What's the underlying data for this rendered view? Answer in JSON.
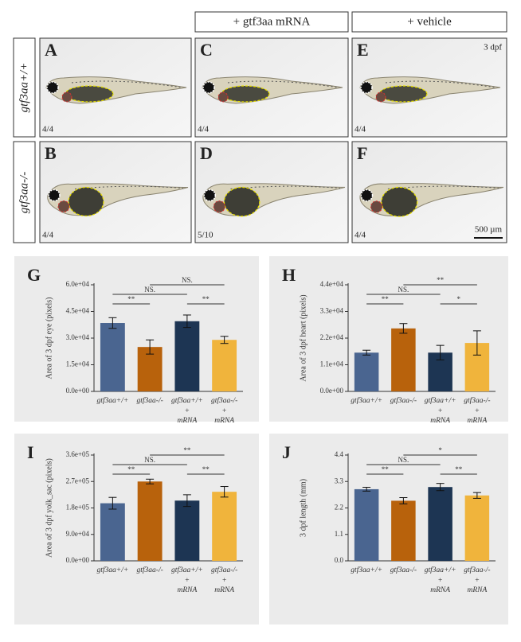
{
  "column_headers": [
    "+ gtf3aa mRNA",
    "+ vehicle"
  ],
  "row_labels": [
    "gtf3aa+/+",
    "gtf3aa-/-"
  ],
  "photos": [
    {
      "label": "A",
      "count": "4/4"
    },
    {
      "label": "C",
      "count": "4/4"
    },
    {
      "label": "E",
      "count": "4/4"
    },
    {
      "label": "B",
      "count": "4/4"
    },
    {
      "label": "D",
      "count": "5/10"
    },
    {
      "label": "F",
      "count": "4/4"
    }
  ],
  "stage": "3 dpf",
  "scale_bar": "500 µm",
  "chart_data": [
    {
      "type": "bar",
      "label": "G",
      "y_label": "Area of 3 dpf eye (pixels)",
      "categories": [
        "gtf3aa+/+",
        "gtf3aa-/-",
        "gtf3aa+/+",
        "gtf3aa-/-"
      ],
      "category_notes": [
        null,
        null,
        [
          "+",
          "mRNA"
        ],
        [
          "+",
          "mRNA"
        ]
      ],
      "values": [
        38500,
        25000,
        39500,
        29000
      ],
      "errors": [
        3000,
        4000,
        3500,
        2000
      ],
      "colors": [
        "#4a6590",
        "#b8620c",
        "#1d3553",
        "#f0b43c"
      ],
      "ylim": [
        0,
        60000
      ],
      "yticks": [
        {
          "value": 0,
          "label": "0.0e+00"
        },
        {
          "value": 15000,
          "label": "1.5e+04"
        },
        {
          "value": 30000,
          "label": "3.0e+04"
        },
        {
          "value": 45000,
          "label": "4.5e+04"
        },
        {
          "value": 60000,
          "label": "6.0e+04"
        }
      ],
      "significance": [
        "**",
        "NS.",
        "NS.",
        "**"
      ]
    },
    {
      "type": "bar",
      "label": "H",
      "y_label": "Area of 3 dpf heart (pixels)",
      "categories": [
        "gtf3aa+/+",
        "gtf3aa-/-",
        "gtf3aa+/+",
        "gtf3aa-/-"
      ],
      "category_notes": [
        null,
        null,
        [
          "+",
          "mRNA"
        ],
        [
          "+",
          "mRNA"
        ]
      ],
      "values": [
        16000,
        26000,
        16000,
        20000
      ],
      "errors": [
        1000,
        2000,
        3000,
        5000
      ],
      "colors": [
        "#4a6590",
        "#b8620c",
        "#1d3553",
        "#f0b43c"
      ],
      "ylim": [
        0,
        44000
      ],
      "yticks": [
        {
          "value": 0,
          "label": "0.0e+00"
        },
        {
          "value": 11000,
          "label": "1.1e+04"
        },
        {
          "value": 22000,
          "label": "2.2e+04"
        },
        {
          "value": 33000,
          "label": "3.3e+04"
        },
        {
          "value": 44000,
          "label": "4.4e+04"
        }
      ],
      "significance": [
        "**",
        "NS.",
        "**",
        "*"
      ]
    },
    {
      "type": "bar",
      "label": "I",
      "y_label": "Area of 3 dpf yolk_sac (pixels)",
      "categories": [
        "gtf3aa+/+",
        "gtf3aa-/-",
        "gtf3aa+/+",
        "gtf3aa-/-"
      ],
      "category_notes": [
        null,
        null,
        [
          "+",
          "mRNA"
        ],
        [
          "+",
          "mRNA"
        ]
      ],
      "values": [
        196000,
        270000,
        205000,
        235000
      ],
      "errors": [
        20000,
        8000,
        20000,
        18000
      ],
      "colors": [
        "#4a6590",
        "#b8620c",
        "#1d3553",
        "#f0b43c"
      ],
      "ylim": [
        0,
        360000
      ],
      "yticks": [
        {
          "value": 0,
          "label": "0.0e+00"
        },
        {
          "value": 90000,
          "label": "9.0e+04"
        },
        {
          "value": 180000,
          "label": "1.8e+05"
        },
        {
          "value": 270000,
          "label": "2.7e+05"
        },
        {
          "value": 360000,
          "label": "3.6e+05"
        }
      ],
      "significance": [
        "**",
        "NS.",
        "**",
        "**"
      ]
    },
    {
      "type": "bar",
      "label": "J",
      "y_label": "3 dpf length (mm)",
      "categories": [
        "gtf3aa+/+",
        "gtf3aa-/-",
        "gtf3aa+/+",
        "gtf3aa-/-"
      ],
      "category_notes": [
        null,
        null,
        [
          "+",
          "mRNA"
        ],
        [
          "+",
          "mRNA"
        ]
      ],
      "values": [
        2.98,
        2.5,
        3.07,
        2.72
      ],
      "errors": [
        0.08,
        0.13,
        0.15,
        0.12
      ],
      "colors": [
        "#4a6590",
        "#b8620c",
        "#1d3553",
        "#f0b43c"
      ],
      "ylim": [
        0,
        4.4
      ],
      "yticks": [
        {
          "value": 0,
          "label": "0.0"
        },
        1.1,
        2.2,
        3.3,
        4.4
      ],
      "significance": [
        "**",
        "NS.",
        "*",
        "**"
      ]
    }
  ]
}
